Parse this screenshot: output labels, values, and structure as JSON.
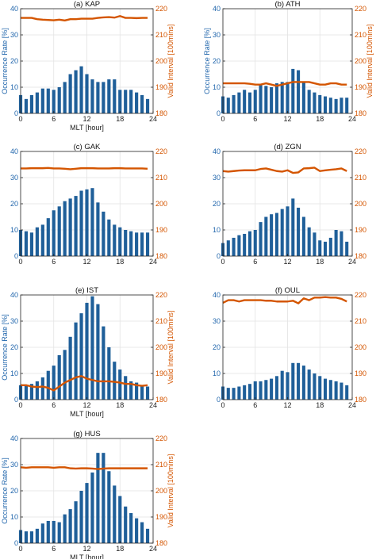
{
  "chart_data": [
    {
      "type": "bar",
      "title": "(a) KAP",
      "xlabel": "MLT [hour]",
      "ylabel_left": "Occurrence Rate [%]",
      "ylabel_right": "Valid Interval [100mins]",
      "xlim": [
        0,
        24
      ],
      "ylim_left": [
        0,
        40
      ],
      "ylim_right": [
        180,
        220
      ],
      "xticks": [
        0,
        6,
        12,
        18,
        24
      ],
      "yticks_left": [
        0,
        10,
        20,
        30,
        40
      ],
      "yticks_right": [
        180,
        190,
        200,
        210,
        220
      ],
      "bar_color": "#1f5f99",
      "line_color": "#d45500",
      "grid": true,
      "x": [
        0,
        1,
        2,
        3,
        4,
        5,
        6,
        7,
        8,
        9,
        10,
        11,
        12,
        13,
        14,
        15,
        16,
        17,
        18,
        19,
        20,
        21,
        22,
        23
      ],
      "series": [
        {
          "axis": "left",
          "kind": "bar",
          "values": [
            7,
            5.5,
            7,
            8,
            9.5,
            9.5,
            9,
            10,
            12,
            15,
            16.5,
            18,
            15,
            13,
            12,
            12,
            13,
            13,
            9,
            9,
            9,
            8,
            7,
            5.5
          ]
        },
        {
          "axis": "right",
          "kind": "line",
          "values": [
            216.5,
            216.5,
            216.5,
            216,
            215.8,
            215.7,
            215.6,
            215.8,
            215.5,
            216,
            216,
            216.2,
            216.2,
            216.2,
            216.5,
            216.7,
            216.8,
            216.6,
            217.2,
            216.5,
            216.5,
            216.4,
            216.5,
            216.5
          ]
        }
      ]
    },
    {
      "type": "bar",
      "title": "(b) ATH",
      "xlabel": "",
      "ylabel_left": "Occurrence Rate [%]",
      "ylabel_right": "Valid Interval [100mins]",
      "xlim": [
        0,
        24
      ],
      "ylim_left": [
        0,
        40
      ],
      "ylim_right": [
        180,
        220
      ],
      "xticks": [
        0,
        6,
        12,
        18,
        24
      ],
      "yticks_left": [
        0,
        10,
        20,
        30,
        40
      ],
      "yticks_right": [
        180,
        190,
        200,
        210,
        220
      ],
      "bar_color": "#1f5f99",
      "line_color": "#d45500",
      "grid": true,
      "x": [
        0,
        1,
        2,
        3,
        4,
        5,
        6,
        7,
        8,
        9,
        10,
        11,
        12,
        13,
        14,
        15,
        16,
        17,
        18,
        19,
        20,
        21,
        22,
        23
      ],
      "series": [
        {
          "axis": "left",
          "kind": "bar",
          "values": [
            6.5,
            6,
            7,
            8,
            9,
            8,
            9,
            11,
            10.5,
            10,
            11.5,
            12,
            12,
            17,
            16.5,
            12,
            9,
            8,
            7,
            6.5,
            6,
            5.5,
            6,
            6
          ]
        },
        {
          "axis": "right",
          "kind": "line",
          "values": [
            191.5,
            191.5,
            191.5,
            191.5,
            191.5,
            191.3,
            191,
            191,
            191.5,
            191,
            190.5,
            191,
            191.5,
            192,
            192,
            192,
            192,
            191.5,
            191,
            191,
            191.5,
            191.5,
            191,
            191
          ]
        }
      ]
    },
    {
      "type": "bar",
      "title": "(c) GAK",
      "xlabel": "",
      "ylabel_left": "",
      "ylabel_right": "",
      "xlim": [
        0,
        24
      ],
      "ylim_left": [
        0,
        40
      ],
      "ylim_right": [
        180,
        220
      ],
      "xticks": [
        0,
        6,
        12,
        18,
        24
      ],
      "yticks_left": [
        0,
        10,
        20,
        30,
        40
      ],
      "yticks_right": [
        180,
        190,
        200,
        210,
        220
      ],
      "bar_color": "#1f5f99",
      "line_color": "#d45500",
      "grid": true,
      "x": [
        0,
        1,
        2,
        3,
        4,
        5,
        6,
        7,
        8,
        9,
        10,
        11,
        12,
        13,
        14,
        15,
        16,
        17,
        18,
        19,
        20,
        21,
        22,
        23
      ],
      "series": [
        {
          "axis": "left",
          "kind": "bar",
          "values": [
            10,
            9.5,
            9,
            11,
            12,
            14.5,
            17.5,
            19,
            21,
            22,
            23,
            25,
            25.5,
            26,
            20.5,
            17,
            14,
            12,
            11,
            10,
            9.5,
            9,
            9,
            9
          ]
        },
        {
          "axis": "right",
          "kind": "line",
          "values": [
            213.5,
            213.5,
            213.6,
            213.6,
            213.6,
            213.7,
            213.5,
            213.5,
            213.4,
            213.2,
            213.4,
            213.6,
            213.6,
            213.6,
            213.5,
            213.5,
            213.5,
            213.6,
            213.6,
            213.5,
            213.5,
            213.5,
            213.5,
            213.4
          ]
        }
      ]
    },
    {
      "type": "bar",
      "title": "(d) ZGN",
      "xlabel": "",
      "ylabel_left": "",
      "ylabel_right": "",
      "xlim": [
        0,
        24
      ],
      "ylim_left": [
        0,
        40
      ],
      "ylim_right": [
        180,
        220
      ],
      "xticks": [
        0,
        6,
        12,
        18,
        24
      ],
      "yticks_left": [
        0,
        10,
        20,
        30,
        40
      ],
      "yticks_right": [
        180,
        190,
        200,
        210,
        220
      ],
      "bar_color": "#1f5f99",
      "line_color": "#d45500",
      "grid": true,
      "x": [
        0,
        1,
        2,
        3,
        4,
        5,
        6,
        7,
        8,
        9,
        10,
        11,
        12,
        13,
        14,
        15,
        16,
        17,
        18,
        19,
        20,
        21,
        22,
        23
      ],
      "series": [
        {
          "axis": "left",
          "kind": "bar",
          "values": [
            5,
            6,
            7,
            8,
            8.5,
            9.5,
            10,
            13,
            15,
            16,
            16.5,
            18,
            19,
            22,
            18.5,
            15,
            11,
            9,
            6,
            5.5,
            7,
            10,
            9.5,
            5.5
          ]
        },
        {
          "axis": "right",
          "kind": "line",
          "values": [
            212.5,
            212.3,
            212.5,
            212.7,
            212.8,
            212.8,
            212.8,
            213.3,
            213.5,
            213,
            212.5,
            212.3,
            212.8,
            211.8,
            212,
            213.5,
            213.6,
            213.8,
            212.5,
            212.8,
            213,
            213.2,
            213.5,
            212.5
          ]
        }
      ]
    },
    {
      "type": "bar",
      "title": "(e) IST",
      "xlabel": "MLT [hour]",
      "ylabel_left": "Occurrence Rate [%]",
      "ylabel_right": "Valid Interval [100mins]",
      "xlim": [
        0,
        24
      ],
      "ylim_left": [
        0,
        40
      ],
      "ylim_right": [
        180,
        220
      ],
      "xticks": [
        0,
        6,
        12,
        18,
        24
      ],
      "yticks_left": [
        0,
        10,
        20,
        30,
        40
      ],
      "yticks_right": [
        180,
        190,
        200,
        210,
        220
      ],
      "bar_color": "#1f5f99",
      "line_color": "#d45500",
      "grid": true,
      "x": [
        0,
        1,
        2,
        3,
        4,
        5,
        6,
        7,
        8,
        9,
        10,
        11,
        12,
        13,
        14,
        15,
        16,
        17,
        18,
        19,
        20,
        21,
        22,
        23
      ],
      "series": [
        {
          "axis": "left",
          "kind": "bar",
          "values": [
            5.5,
            5.5,
            6,
            7,
            8.5,
            11,
            13,
            17,
            19,
            24,
            29.5,
            33,
            37,
            39.5,
            36.5,
            28,
            20,
            14.5,
            11.5,
            9,
            7,
            6.5,
            5.5,
            5
          ]
        },
        {
          "axis": "right",
          "kind": "line",
          "values": [
            185.5,
            185.5,
            185,
            184.8,
            185,
            184.5,
            183.5,
            185,
            186.5,
            187.5,
            188.5,
            189,
            188,
            187.5,
            187,
            187,
            187,
            186.8,
            186.5,
            186,
            186,
            185.5,
            185.3,
            185.5
          ]
        }
      ]
    },
    {
      "type": "bar",
      "title": "(f) OUL",
      "xlabel": "",
      "ylabel_left": "",
      "ylabel_right": "",
      "xlim": [
        0,
        24
      ],
      "ylim_left": [
        0,
        40
      ],
      "ylim_right": [
        180,
        220
      ],
      "xticks": [
        0,
        6,
        12,
        18,
        24
      ],
      "yticks_left": [
        0,
        10,
        20,
        30,
        40
      ],
      "yticks_right": [
        180,
        190,
        200,
        210,
        220
      ],
      "bar_color": "#1f5f99",
      "line_color": "#d45500",
      "grid": true,
      "x": [
        0,
        1,
        2,
        3,
        4,
        5,
        6,
        7,
        8,
        9,
        10,
        11,
        12,
        13,
        14,
        15,
        16,
        17,
        18,
        19,
        20,
        21,
        22,
        23
      ],
      "series": [
        {
          "axis": "left",
          "kind": "bar",
          "values": [
            5,
            4.5,
            4.5,
            5,
            5.5,
            6,
            7,
            7,
            7.5,
            8,
            9,
            11,
            10.5,
            14,
            14,
            13,
            11.5,
            10,
            9,
            8,
            7.5,
            7,
            6.5,
            5.5
          ]
        },
        {
          "axis": "right",
          "kind": "line",
          "values": [
            217,
            218,
            218,
            217.5,
            218,
            218,
            218,
            218,
            217.8,
            217.8,
            217.5,
            217.5,
            217.5,
            217.8,
            216.8,
            218.7,
            218,
            219,
            219,
            219.2,
            219,
            219,
            218.5,
            217.5
          ]
        }
      ]
    },
    {
      "type": "bar",
      "title": "(g) HUS",
      "xlabel": "MLT [hour]",
      "ylabel_left": "Occurrence Rate [%]",
      "ylabel_right": "Valid Interval [100mins]",
      "xlim": [
        0,
        24
      ],
      "ylim_left": [
        0,
        40
      ],
      "ylim_right": [
        180,
        220
      ],
      "xticks": [
        0,
        6,
        12,
        18,
        24
      ],
      "yticks_left": [
        0,
        10,
        20,
        30,
        40
      ],
      "yticks_right": [
        180,
        190,
        200,
        210,
        220
      ],
      "bar_color": "#1f5f99",
      "line_color": "#d45500",
      "grid": true,
      "x": [
        0,
        1,
        2,
        3,
        4,
        5,
        6,
        7,
        8,
        9,
        10,
        11,
        12,
        13,
        14,
        15,
        16,
        17,
        18,
        19,
        20,
        21,
        22,
        23
      ],
      "series": [
        {
          "axis": "left",
          "kind": "bar",
          "values": [
            5,
            4.5,
            4.5,
            5.5,
            7.5,
            8.5,
            8.5,
            8,
            11,
            13,
            16,
            20,
            23,
            27,
            34.5,
            34.5,
            27.5,
            22,
            18,
            14,
            11.5,
            9.5,
            8,
            5.5
          ]
        },
        {
          "axis": "right",
          "kind": "line",
          "values": [
            209,
            208.8,
            209,
            209,
            209,
            209,
            208.8,
            209,
            209,
            208.6,
            208.5,
            208.6,
            208.6,
            208.5,
            208.3,
            208.5,
            208.6,
            208.6,
            208.6,
            208.6,
            208.6,
            208.6,
            208.6,
            208.6
          ]
        }
      ]
    }
  ]
}
